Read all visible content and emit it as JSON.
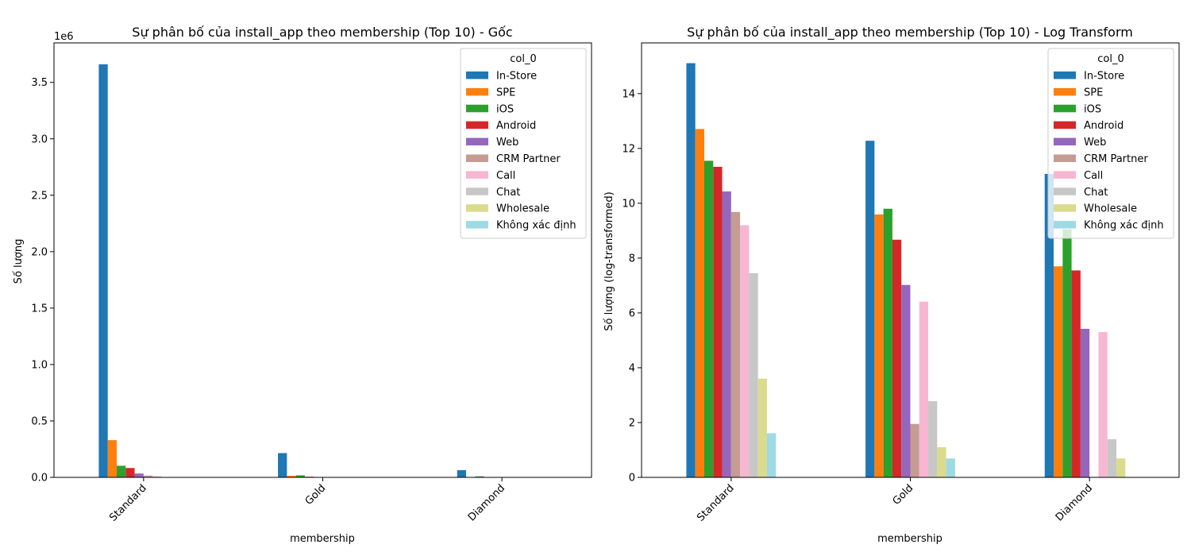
{
  "colors": [
    "#1f77b4",
    "#ff7f0e",
    "#2ca02c",
    "#d62728",
    "#9467bd",
    "#c49c94",
    "#f7b6d2",
    "#c7c7c7",
    "#dbdb8d",
    "#9edae5"
  ],
  "chart_data": [
    {
      "type": "bar",
      "title": "Sự phân bố của install_app theo membership (Top 10) - Gốc",
      "xlabel": "membership",
      "ylabel": "Số lượng",
      "scale_label": "1e6",
      "categories": [
        "Standard",
        "Gold",
        "Diamond"
      ],
      "ylim": [
        0,
        3.85
      ],
      "yticks": [
        0,
        0.5,
        1.0,
        1.5,
        2.0,
        2.5,
        3.0,
        3.5
      ],
      "ytick_labels": [
        "0.0",
        "0.5",
        "1.0",
        "1.5",
        "2.0",
        "2.5",
        "3.0",
        "3.5"
      ],
      "legend_title": "col_0",
      "legend_position": "top-right",
      "grid": false,
      "series": [
        {
          "name": "In-Store",
          "values": [
            3.66,
            0.215,
            0.064
          ]
        },
        {
          "name": "SPE",
          "values": [
            0.33,
            0.0145,
            0.0022
          ]
        },
        {
          "name": "iOS",
          "values": [
            0.103,
            0.018,
            0.0085
          ]
        },
        {
          "name": "Android",
          "values": [
            0.083,
            0.0058,
            0.0019
          ]
        },
        {
          "name": "Web",
          "values": [
            0.034,
            0.0011,
            0.0002
          ]
        },
        {
          "name": "CRM Partner",
          "values": [
            0.016,
            0.0,
            0.0
          ]
        },
        {
          "name": "Call",
          "values": [
            0.0099,
            0.0006,
            0.0002
          ]
        },
        {
          "name": "Chat",
          "values": [
            0.0017,
            0.0,
            0.0
          ]
        },
        {
          "name": "Wholesale",
          "values": [
            3e-05,
            0.0,
            0.0
          ]
        },
        {
          "name": "Không xác định",
          "values": [
            0.0,
            0.0,
            0.0
          ]
        }
      ]
    },
    {
      "type": "bar",
      "title": "Sự phân bố của install_app theo membership (Top 10) - Log Transform",
      "xlabel": "membership",
      "ylabel": "Số lượng (log-transformed)",
      "scale_label": "",
      "categories": [
        "Standard",
        "Gold",
        "Diamond"
      ],
      "ylim": [
        0,
        15.85
      ],
      "yticks": [
        0,
        2,
        4,
        6,
        8,
        10,
        12,
        14
      ],
      "ytick_labels": [
        "0",
        "2",
        "4",
        "6",
        "8",
        "10",
        "12",
        "14"
      ],
      "legend_title": "col_0",
      "legend_position": "top-right",
      "grid": false,
      "series": [
        {
          "name": "In-Store",
          "values": [
            15.11,
            12.28,
            11.07
          ]
        },
        {
          "name": "SPE",
          "values": [
            12.71,
            9.59,
            7.7
          ]
        },
        {
          "name": "iOS",
          "values": [
            11.55,
            9.8,
            9.05
          ]
        },
        {
          "name": "Android",
          "values": [
            11.33,
            8.67,
            7.55
          ]
        },
        {
          "name": "Web",
          "values": [
            10.43,
            7.02,
            5.42
          ]
        },
        {
          "name": "CRM Partner",
          "values": [
            9.68,
            1.95,
            0
          ]
        },
        {
          "name": "Call",
          "values": [
            9.2,
            6.41,
            5.3
          ]
        },
        {
          "name": "Chat",
          "values": [
            7.45,
            2.78,
            1.39
          ]
        },
        {
          "name": "Wholesale",
          "values": [
            3.6,
            1.1,
            0.69
          ]
        },
        {
          "name": "Không xác định",
          "values": [
            1.61,
            0.69,
            0
          ]
        }
      ]
    }
  ]
}
